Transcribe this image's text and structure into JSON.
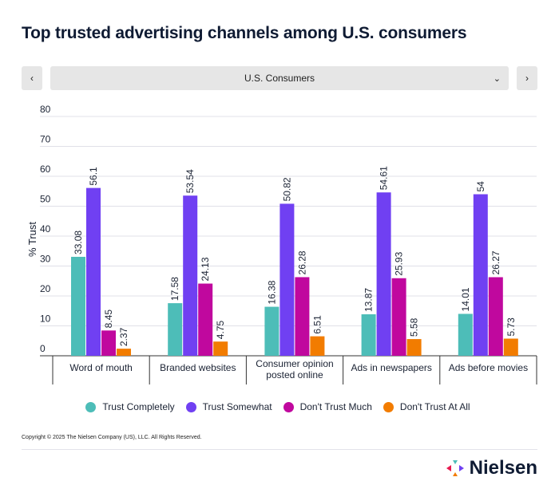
{
  "title": "Top trusted advertising channels among U.S. consumers",
  "controls": {
    "prev": "‹",
    "next": "›",
    "selected": "U.S. Consumers",
    "chevron": "⌄"
  },
  "chart_data": {
    "type": "bar",
    "ylabel": "% Trust",
    "ylim": [
      0,
      80
    ],
    "yticks": [
      0,
      10,
      20,
      30,
      40,
      50,
      60,
      70,
      80
    ],
    "grid": true,
    "legend_position": "bottom",
    "categories": [
      "Word of mouth",
      "Branded websites",
      "Consumer opinion posted online",
      "Ads in newspapers",
      "Ads before movies"
    ],
    "category_lines": [
      [
        "Word of mouth"
      ],
      [
        "Branded websites"
      ],
      [
        "Consumer opinion",
        "posted online"
      ],
      [
        "Ads in newspapers"
      ],
      [
        "Ads before movies"
      ]
    ],
    "series": [
      {
        "name": "Trust Completely",
        "color": "#4dbdb8",
        "values": [
          33.08,
          17.58,
          16.38,
          13.87,
          14.01
        ]
      },
      {
        "name": "Trust Somewhat",
        "color": "#7040f2",
        "values": [
          56.1,
          53.54,
          50.82,
          54.61,
          54
        ]
      },
      {
        "name": "Don't Trust Much",
        "color": "#c0089e",
        "values": [
          8.45,
          24.13,
          26.28,
          25.93,
          26.27
        ]
      },
      {
        "name": "Don't Trust At All",
        "color": "#f27c00",
        "values": [
          2.37,
          4.75,
          6.51,
          5.58,
          5.73
        ]
      }
    ]
  },
  "footer": {
    "copyright": "Copyright © 2025 The Nielsen Company (US), LLC. All Rights Reserved.",
    "logo": "Nielsen"
  }
}
